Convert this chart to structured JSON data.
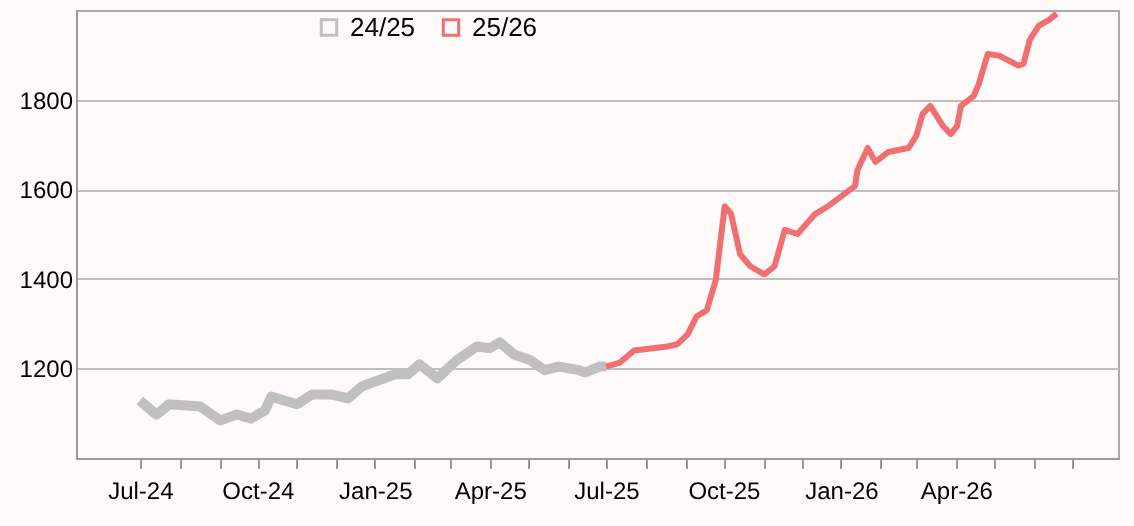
{
  "chart_data": {
    "type": "line",
    "xlim": [
      "2024-05-12",
      "2026-08-06"
    ],
    "xticks": [
      {
        "value": "2024-07-01",
        "label": "Jul-24"
      },
      {
        "value": "2024-08-01",
        "label": null
      },
      {
        "value": "2024-09-01",
        "label": null
      },
      {
        "value": "2024-10-01",
        "label": "Oct-24"
      },
      {
        "value": "2024-11-01",
        "label": null
      },
      {
        "value": "2024-12-01",
        "label": null
      },
      {
        "value": "2025-01-01",
        "label": "Jan-25"
      },
      {
        "value": "2025-02-01",
        "label": null
      },
      {
        "value": "2025-03-01",
        "label": null
      },
      {
        "value": "2025-04-01",
        "label": "Apr-25"
      },
      {
        "value": "2025-05-01",
        "label": null
      },
      {
        "value": "2025-06-01",
        "label": null
      },
      {
        "value": "2025-07-01",
        "label": "Jul-25"
      },
      {
        "value": "2025-08-01",
        "label": null
      },
      {
        "value": "2025-09-01",
        "label": null
      },
      {
        "value": "2025-10-01",
        "label": "Oct-25"
      },
      {
        "value": "2025-11-01",
        "label": null
      },
      {
        "value": "2025-12-01",
        "label": null
      },
      {
        "value": "2026-01-01",
        "label": "Jan-26"
      },
      {
        "value": "2026-02-01",
        "label": null
      },
      {
        "value": "2026-03-01",
        "label": null
      },
      {
        "value": "2026-04-01",
        "label": "Apr-26"
      },
      {
        "value": "2026-05-01",
        "label": null
      },
      {
        "value": "2026-06-01",
        "label": null
      },
      {
        "value": "2026-07-01",
        "label": null
      }
    ],
    "ylim": [
      1000,
      2000
    ],
    "yticks": [
      1200,
      1400,
      1600,
      1800
    ],
    "grid": "y",
    "legend": "top",
    "marker": "none",
    "line_style": "solid",
    "series": [
      {
        "name": "24/25",
        "color": "#c0c0c0",
        "x": [
          "2024-07-01",
          "2024-07-14",
          "2024-07-24",
          "2024-08-17",
          "2024-09-02",
          "2024-09-15",
          "2024-09-26",
          "2024-10-07",
          "2024-10-12",
          "2024-11-01",
          "2024-11-13",
          "2024-11-28",
          "2024-12-11",
          "2024-12-22",
          "2025-01-17",
          "2025-01-27",
          "2025-02-05",
          "2025-02-19",
          "2025-03-06",
          "2025-03-22",
          "2025-04-01",
          "2025-04-09",
          "2025-04-20",
          "2025-05-03",
          "2025-05-14",
          "2025-05-25",
          "2025-06-10",
          "2025-06-15",
          "2025-06-26",
          "2025-07-01"
        ],
        "values": [
          1128,
          1097,
          1120,
          1115,
          1084,
          1097,
          1088,
          1106,
          1137,
          1120,
          1142,
          1142,
          1133,
          1160,
          1187,
          1187,
          1209,
          1178,
          1218,
          1249,
          1245,
          1258,
          1231,
          1218,
          1196,
          1204,
          1196,
          1191,
          1204,
          1204
        ]
      },
      {
        "name": "25/26",
        "color": "#f07070",
        "x": [
          "2025-07-01",
          "2025-07-12",
          "2025-07-23",
          "2025-08-18",
          "2025-08-26",
          "2025-09-03",
          "2025-09-10",
          "2025-09-18",
          "2025-09-25",
          "2025-10-02",
          "2025-10-07",
          "2025-10-14",
          "2025-10-22",
          "2025-11-02",
          "2025-11-10",
          "2025-11-18",
          "2025-11-28",
          "2025-12-12",
          "2025-12-22",
          "2026-01-12",
          "2026-01-14",
          "2026-01-22",
          "2026-01-28",
          "2026-02-07",
          "2026-02-23",
          "2026-03-01",
          "2026-03-06",
          "2026-03-12",
          "2026-03-22",
          "2026-03-28",
          "2026-04-02",
          "2026-04-05",
          "2026-04-15",
          "2026-04-19",
          "2026-04-26",
          "2026-05-05",
          "2026-05-20",
          "2026-05-24",
          "2026-05-29",
          "2026-06-05",
          "2026-06-13",
          "2026-06-19"
        ],
        "values": [
          1204,
          1213,
          1240,
          1249,
          1254,
          1276,
          1316,
          1330,
          1397,
          1562,
          1545,
          1455,
          1428,
          1410,
          1428,
          1509,
          1500,
          1545,
          1562,
          1607,
          1643,
          1692,
          1661,
          1683,
          1692,
          1719,
          1768,
          1786,
          1741,
          1723,
          1741,
          1786,
          1808,
          1835,
          1902,
          1898,
          1876,
          1880,
          1934,
          1965,
          1978,
          1992
        ]
      }
    ]
  }
}
